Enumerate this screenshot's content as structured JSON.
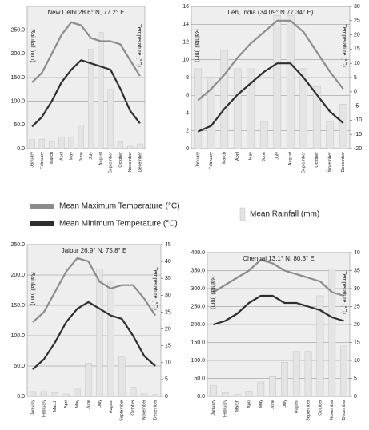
{
  "chart_data": [
    {
      "type": "combo",
      "title": "New Delhi 28.6° N, 77.2° E",
      "ylabel": "Rainfall (mm)",
      "y2label": "Temperature (°C)",
      "categories": [
        "January",
        "February",
        "March",
        "April",
        "May",
        "June",
        "July",
        "August",
        "September",
        "October",
        "November",
        "December"
      ],
      "ylim": [
        0,
        300
      ],
      "yticks": [
        {
          "value": 0,
          "label": "0.0"
        },
        {
          "value": 50,
          "label": "50.0"
        },
        {
          "value": 100,
          "label": "100.0"
        },
        {
          "value": 150,
          "label": "150.0"
        },
        {
          "value": 200,
          "label": "200.0"
        },
        {
          "value": 250,
          "label": "250.0"
        }
      ],
      "y2lim": [
        0,
        45
      ],
      "series": [
        {
          "name": "Mean Rainfall (mm)",
          "type": "bar",
          "color": "#e4e4e4",
          "values": [
            19,
            20,
            15,
            25,
            25,
            50,
            210,
            245,
            125,
            15,
            5,
            10
          ]
        },
        {
          "name": "Mean Maximum Temperature (°C)",
          "type": "line",
          "axis": "y2",
          "color": "#8c8c8c",
          "values": [
            21,
            24,
            30,
            36,
            40,
            39,
            35,
            34,
            34,
            33,
            28,
            23
          ]
        },
        {
          "name": "Mean Minimum Temperature (°C)",
          "type": "line",
          "axis": "y2",
          "color": "#2e2e2e",
          "values": [
            7,
            10,
            15,
            21,
            25,
            28,
            27,
            26,
            25,
            19,
            12,
            8
          ]
        }
      ]
    },
    {
      "type": "combo",
      "title": "Leh, India (34.09° N 77.34° E)",
      "ylabel": "Rainfall (mm)",
      "y2label": "Temperature (°C)",
      "categories": [
        "January",
        "February",
        "March",
        "April",
        "May",
        "June",
        "July",
        "August",
        "September",
        "October",
        "November",
        "December"
      ],
      "ylim": [
        0,
        16
      ],
      "yticks": [
        0,
        2,
        4,
        6,
        8,
        10,
        12,
        14,
        16
      ],
      "y2lim": [
        -20,
        30
      ],
      "y2ticks": [
        -20,
        -15,
        -10,
        -5,
        0,
        5,
        10,
        15,
        20,
        25,
        30
      ],
      "series": [
        {
          "type": "bar",
          "color": "#e4e4e4",
          "values": [
            9,
            8,
            11,
            9,
            9,
            3,
            15,
            15,
            9,
            7,
            3,
            5
          ]
        },
        {
          "type": "line",
          "axis": "y2",
          "color": "#8c8c8c",
          "values": [
            -3,
            1,
            6,
            12,
            17,
            21,
            25,
            25,
            21,
            14,
            7,
            1
          ]
        },
        {
          "type": "line",
          "axis": "y2",
          "color": "#2e2e2e",
          "values": [
            -14,
            -12,
            -6,
            -1,
            3,
            7,
            10,
            10,
            5,
            -1,
            -7,
            -11
          ]
        }
      ]
    },
    {
      "type": "combo",
      "title": "Jaipur 26.9° N, 75.8° E",
      "ylabel": "Rainfall (mm)",
      "y2label": "Temperature (°C)",
      "categories": [
        "January",
        "February",
        "March",
        "April",
        "May",
        "June",
        "July",
        "August",
        "September",
        "October",
        "November",
        "December"
      ],
      "ylim": [
        0,
        250
      ],
      "yticks": [
        {
          "value": 0,
          "label": "0.0"
        },
        {
          "value": 50,
          "label": "50.0"
        },
        {
          "value": 100,
          "label": "100.0"
        },
        {
          "value": 150,
          "label": "150.0"
        },
        {
          "value": 200,
          "label": "200.0"
        },
        {
          "value": 250,
          "label": "250.0"
        }
      ],
      "y2lim": [
        0,
        45
      ],
      "y2ticks": [
        0,
        5,
        10,
        15,
        20,
        25,
        30,
        35,
        40,
        45
      ],
      "series": [
        {
          "type": "bar",
          "color": "#e4e4e4",
          "values": [
            8,
            8,
            6,
            4,
            12,
            55,
            210,
            190,
            65,
            15,
            4,
            3
          ]
        },
        {
          "type": "line",
          "axis": "y2",
          "color": "#8c8c8c",
          "values": [
            22,
            25,
            31,
            37,
            41,
            40,
            34,
            32,
            33,
            33,
            29,
            24
          ]
        },
        {
          "type": "line",
          "axis": "y2",
          "color": "#2e2e2e",
          "values": [
            8,
            11,
            16,
            22,
            26,
            28,
            26,
            24,
            23,
            18,
            12,
            9
          ]
        }
      ]
    },
    {
      "type": "combo",
      "title": "Chennai 13.1° N, 80.3° E",
      "ylabel": "Rainfall (mm)",
      "y2label": "Temperature (°C)",
      "categories": [
        "January",
        "February",
        "March",
        "April",
        "May",
        "June",
        "July",
        "August",
        "September",
        "October",
        "November",
        "December"
      ],
      "ylim": [
        0,
        400
      ],
      "yticks": [
        {
          "value": 0,
          "label": "0.0"
        },
        {
          "value": 50,
          "label": "50.0"
        },
        {
          "value": 100,
          "label": "100.0"
        },
        {
          "value": 150,
          "label": "150.0"
        },
        {
          "value": 200,
          "label": "200.0"
        },
        {
          "value": 250,
          "label": "250.0"
        },
        {
          "value": 300,
          "label": "300.0"
        },
        {
          "value": 350,
          "label": "350.0"
        },
        {
          "value": 400,
          "label": "400.0"
        }
      ],
      "y2lim": [
        0,
        40
      ],
      "y2ticks": [
        0,
        5,
        10,
        15,
        20,
        25,
        30,
        35,
        40
      ],
      "series": [
        {
          "type": "bar",
          "color": "#e4e4e4",
          "values": [
            30,
            10,
            5,
            15,
            40,
            55,
            95,
            125,
            125,
            280,
            355,
            140
          ]
        },
        {
          "type": "line",
          "axis": "y2",
          "color": "#8c8c8c",
          "values": [
            29,
            31,
            33,
            35,
            38,
            37,
            35,
            34,
            33,
            32,
            29,
            28
          ]
        },
        {
          "type": "line",
          "axis": "y2",
          "color": "#2e2e2e",
          "values": [
            20,
            21,
            23,
            26,
            28,
            28,
            26,
            26,
            25,
            24,
            22,
            21
          ]
        }
      ]
    }
  ]
}
